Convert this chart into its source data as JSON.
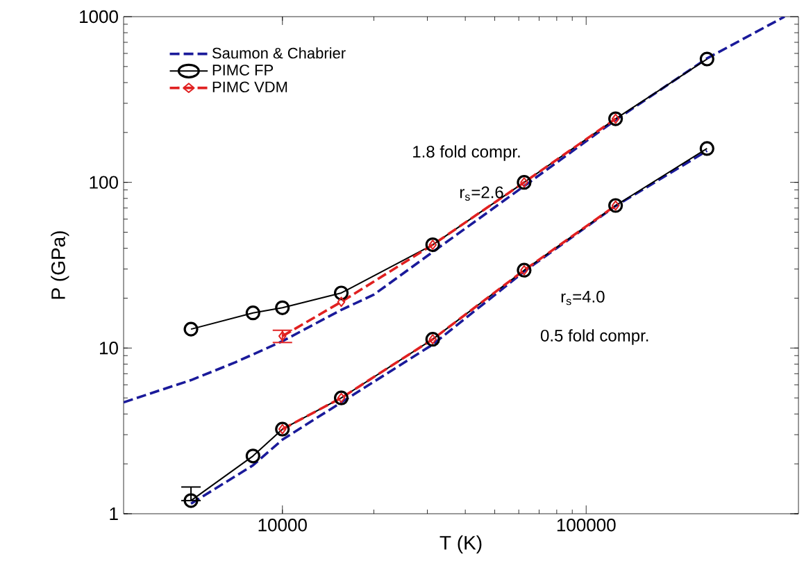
{
  "chart_data": {
    "type": "line",
    "xlabel": "T (K)",
    "ylabel": "P (GPa)",
    "log": "xy",
    "legend": "top left",
    "xlim": [
      3000,
      500000
    ],
    "ylim": [
      1,
      1000
    ],
    "xticks": [
      10000,
      100000
    ],
    "yticks": [
      1,
      10,
      100,
      1000
    ],
    "annotations": [
      "1.8 fold compr.",
      "r$_{s}$=2.6",
      "r$_{s}$=4.0",
      "0.5 fold compr."
    ],
    "series": [
      {
        "name": "Saumon & Chabrier",
        "color": "#1a1a9a",
        "line_style": "dashed",
        "marker": "none",
        "x": [
          3000,
          4000,
          5000,
          7000,
          10000,
          15625,
          20000,
          31250,
          62500,
          125000,
          250000,
          450000
        ],
        "values": [
          4.7,
          5.6,
          6.4,
          8.2,
          11,
          17,
          21,
          38,
          95,
          238,
          560,
          1000
        ]
      },
      {
        "color": "#1a1a9a",
        "line_style": "dashed",
        "marker": "none",
        "x": [
          5000,
          8000,
          10000,
          15625,
          31250,
          62500,
          125000,
          250000
        ],
        "values": [
          1.15,
          1.96,
          2.8,
          4.7,
          10.5,
          29,
          72,
          155
        ]
      },
      {
        "name": "PIMC FP",
        "color": "#000000",
        "line_style": "solid",
        "marker": "circle",
        "x": [
          5000,
          8000,
          10000,
          15625,
          31250,
          62500,
          125000,
          250000
        ],
        "values": [
          13,
          16.3,
          17.5,
          21.5,
          42,
          100,
          242,
          555
        ]
      },
      {
        "color": "#000000",
        "line_style": "solid",
        "marker": "circle",
        "x": [
          5000,
          8000,
          10000,
          15625,
          31250,
          62500,
          125000,
          250000
        ],
        "values": [
          1.2,
          2.23,
          3.24,
          5,
          11.3,
          29.5,
          72.5,
          160
        ],
        "errors": [
          [
            1.2,
            1.45
          ],
          null,
          null,
          null,
          null,
          null,
          null,
          null
        ]
      },
      {
        "name": "PIMC VDM",
        "color": "#e02020",
        "line_style": "dashed",
        "marker": "diamond",
        "x": [
          10000,
          15625,
          31250,
          62500,
          125000
        ],
        "values": [
          11.8,
          19,
          42,
          100,
          242
        ],
        "errors": [
          1,
          null,
          null,
          null,
          null
        ]
      },
      {
        "color": "#e02020",
        "line_style": "dashed",
        "marker": "diamond",
        "x": [
          10000,
          15625,
          31250,
          62500,
          125000
        ],
        "values": [
          3.24,
          5,
          11.3,
          29.5,
          72.5
        ]
      }
    ]
  }
}
